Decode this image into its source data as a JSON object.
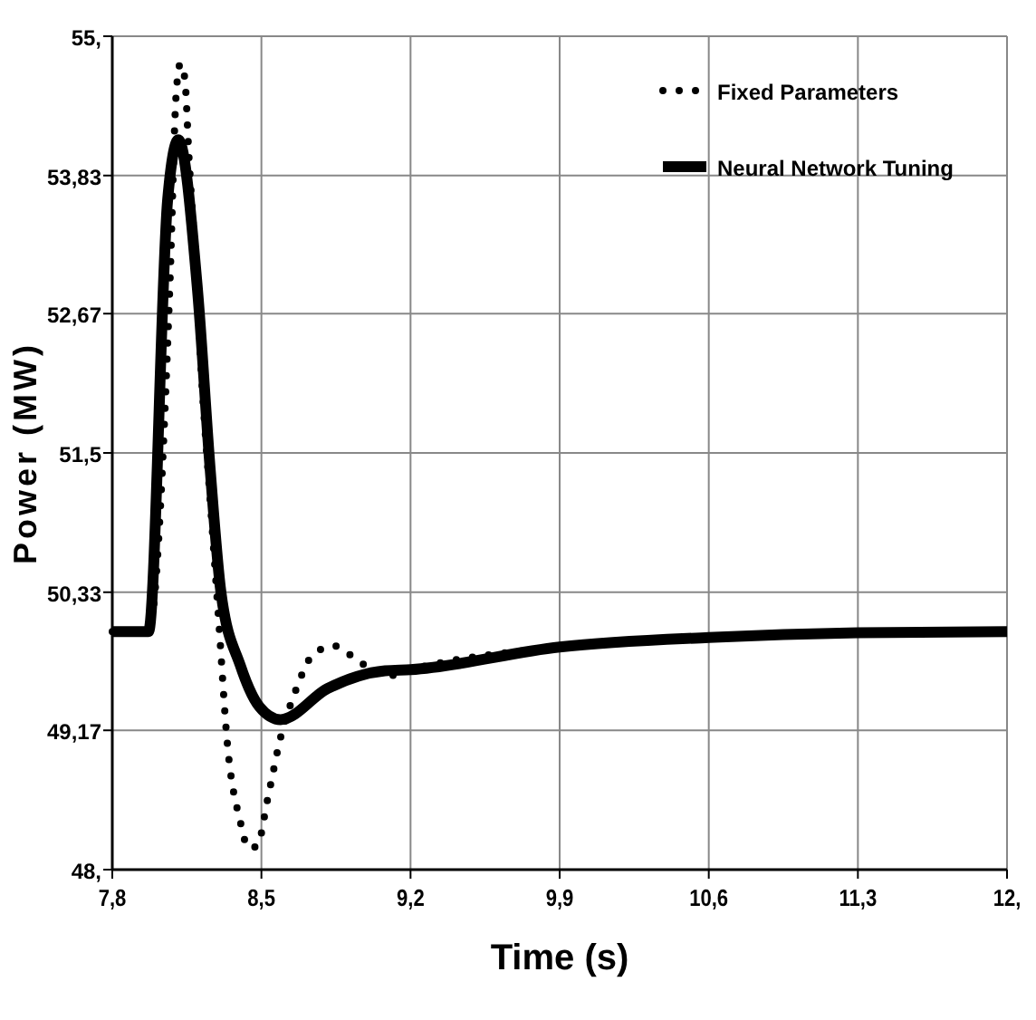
{
  "chart_data": {
    "type": "line",
    "xlabel": "Time (s)",
    "ylabel": "Power (MW)",
    "xlim": [
      7.8,
      12
    ],
    "ylim": [
      48,
      55
    ],
    "xticks": [
      {
        "value": 7.8,
        "label": "7,8"
      },
      {
        "value": 8.5,
        "label": "8,5"
      },
      {
        "value": 9.2,
        "label": "9,2"
      },
      {
        "value": 9.9,
        "label": "9,9"
      },
      {
        "value": 10.6,
        "label": "10,6"
      },
      {
        "value": 11.3,
        "label": "11,3"
      },
      {
        "value": 12,
        "label": "12,"
      }
    ],
    "yticks": [
      {
        "value": 48,
        "label": "48,"
      },
      {
        "value": 49.17,
        "label": "49,17"
      },
      {
        "value": 50.33,
        "label": "50,33"
      },
      {
        "value": 51.5,
        "label": "51,5"
      },
      {
        "value": 52.67,
        "label": "52,67"
      },
      {
        "value": 53.83,
        "label": "53,83"
      },
      {
        "value": 55,
        "label": "55,"
      }
    ],
    "grid": true,
    "legend": "top right",
    "series": [
      {
        "name": "Fixed Parameters",
        "color": "#000000",
        "line_style": "dotted",
        "x": [
          7.8,
          7.97,
          8.07,
          8.1,
          8.12,
          8.14,
          8.16,
          8.19,
          8.22,
          8.26,
          8.3,
          8.34,
          8.4,
          8.44,
          8.48,
          8.53,
          8.59,
          8.66,
          8.74,
          8.84,
          8.92,
          9.0,
          9.1,
          9.2,
          9.9,
          10.6,
          11.3,
          12
        ],
        "values": [
          50.0,
          50.0,
          52.9,
          54.52,
          54.77,
          54.65,
          53.98,
          53.12,
          52.11,
          51.09,
          50.08,
          49.06,
          48.41,
          48.18,
          48.2,
          48.6,
          49.11,
          49.5,
          49.8,
          49.88,
          49.8,
          49.7,
          49.63,
          49.68,
          49.87,
          49.95,
          49.99,
          50.0
        ]
      },
      {
        "name": "Neural Network Tuning",
        "color": "#000000",
        "line_style": "solid",
        "x": [
          7.8,
          7.97,
          8.06,
          8.11,
          8.2,
          8.26,
          8.31,
          8.4,
          8.49,
          8.59,
          8.81,
          9.08,
          9.2,
          9.9,
          10.6,
          11.3,
          12
        ],
        "values": [
          50.0,
          50.0,
          53.63,
          54.13,
          52.87,
          51.35,
          50.33,
          49.72,
          49.37,
          49.26,
          49.52,
          49.67,
          49.68,
          49.87,
          49.95,
          49.99,
          50.0
        ]
      }
    ]
  }
}
